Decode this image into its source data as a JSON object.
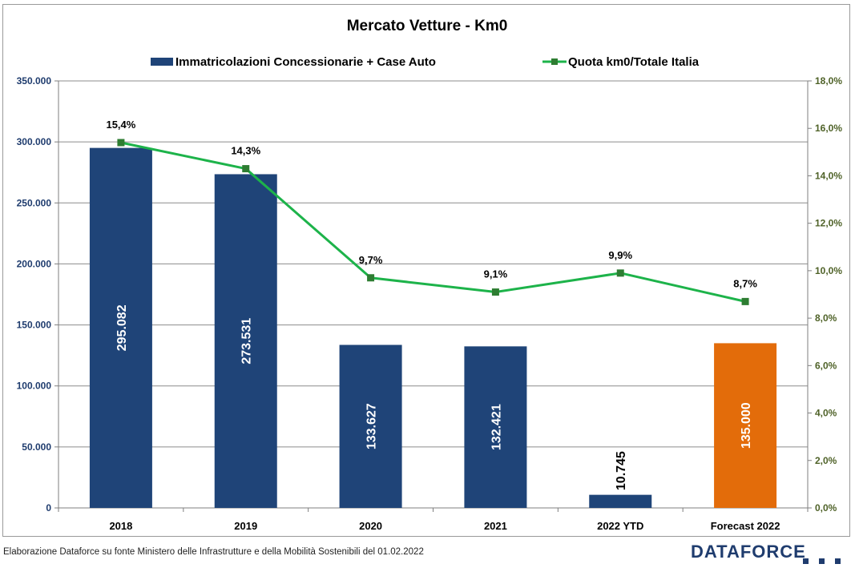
{
  "chart_data": {
    "type": "bar",
    "title": "Mercato Vetture - Km0",
    "categories": [
      "2018",
      "2019",
      "2020",
      "2021",
      "2022 YTD",
      "Forecast 2022"
    ],
    "series": [
      {
        "name": "Immatricolazioni Concessionarie + Case Auto",
        "type": "bar",
        "axis": "left",
        "values": [
          295082,
          273531,
          133627,
          132421,
          10745,
          135000
        ],
        "labels": [
          "295.082",
          "273.531",
          "133.627",
          "132.421",
          "10.745",
          "135.000"
        ],
        "colors": [
          "#1f4478",
          "#1f4478",
          "#1f4478",
          "#1f4478",
          "#1f4478",
          "#e36c0a"
        ]
      },
      {
        "name": "Quota km0/Totale Italia",
        "type": "line",
        "axis": "right",
        "values": [
          15.4,
          14.3,
          9.7,
          9.1,
          9.9,
          8.7
        ],
        "labels": [
          "15,4%",
          "14,3%",
          "9,7%",
          "9,1%",
          "9,9%",
          "8,7%"
        ],
        "color": "#1db34a",
        "marker_color": "#2e7d32"
      }
    ],
    "y_left": {
      "ylim": [
        0,
        350000
      ],
      "ticks": [
        0,
        50000,
        100000,
        150000,
        200000,
        250000,
        300000,
        350000
      ],
      "tick_labels": [
        "0",
        "50.000",
        "100.000",
        "150.000",
        "200.000",
        "250.000",
        "300.000",
        "350.000"
      ]
    },
    "y_right": {
      "ylim": [
        0,
        18
      ],
      "ticks": [
        0,
        2,
        4,
        6,
        8,
        10,
        12,
        14,
        16,
        18
      ],
      "tick_labels": [
        "0,0%",
        "2,0%",
        "4,0%",
        "6,0%",
        "8,0%",
        "10,0%",
        "12,0%",
        "14,0%",
        "16,0%",
        "18,0%"
      ]
    },
    "grid": true,
    "legend": "top"
  },
  "footer": {
    "note": "Elaborazione Dataforce su fonte Ministero delle Infrastrutture e della Mobilità Sostenibili del 01.02.2022",
    "logo": "DATAFORCE"
  },
  "colors": {
    "bar": "#1f4478",
    "bar_forecast": "#e36c0a",
    "line": "#1db34a",
    "left_axis_text": "#1f3c6e",
    "right_axis_text": "#4f6228"
  }
}
